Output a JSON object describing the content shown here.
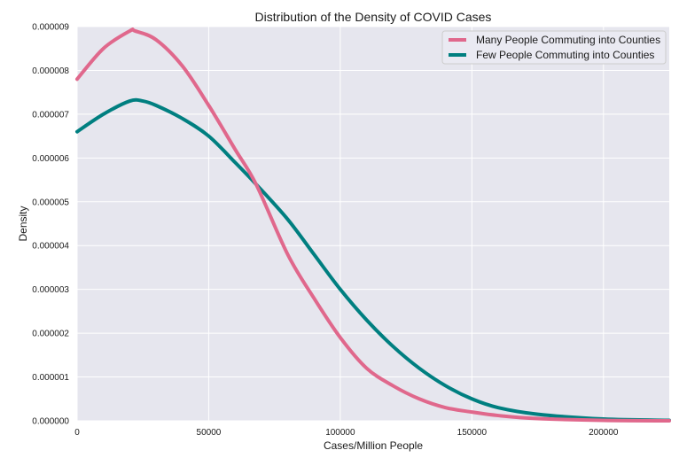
{
  "chart_data": {
    "type": "line",
    "title": "Distribution of the Density of COVID Cases",
    "xlabel": "Cases/Million People",
    "ylabel": "Density",
    "xlim": [
      0,
      225000
    ],
    "ylim": [
      0,
      9e-06
    ],
    "x_ticks": [
      0,
      50000,
      100000,
      150000,
      200000
    ],
    "x_tick_labels": [
      "0",
      "50000",
      "100000",
      "150000",
      "200000"
    ],
    "y_ticks": [
      0,
      1e-06,
      2e-06,
      3e-06,
      4e-06,
      5e-06,
      6e-06,
      7e-06,
      8e-06,
      9e-06
    ],
    "y_tick_labels": [
      "0.000000",
      "0.000001",
      "0.000002",
      "0.000003",
      "0.000004",
      "0.000005",
      "0.000006",
      "0.000007",
      "0.000008",
      "0.000009"
    ],
    "grid": true,
    "legend_position": "top-right",
    "background_color": "#e6e6ee",
    "series": [
      {
        "name": "Many People Commuting into Counties",
        "color": "#e0688c",
        "x": [
          0,
          10000,
          20000,
          22000,
          30000,
          40000,
          50000,
          60000,
          68000,
          80000,
          90000,
          100000,
          110000,
          120000,
          130000,
          140000,
          150000,
          160000,
          175000,
          200000,
          225000
        ],
        "y": [
          7.8e-06,
          8.5e-06,
          8.9e-06,
          8.9e-06,
          8.7e-06,
          8.1e-06,
          7.2e-06,
          6.2e-06,
          5.4e-06,
          3.8e-06,
          2.8e-06,
          1.9e-06,
          1.2e-06,
          8e-07,
          5e-07,
          3e-07,
          2e-07,
          1.2e-07,
          5e-08,
          1e-08,
          0.0
        ]
      },
      {
        "name": "Few People Commuting into Counties",
        "color": "#007f80",
        "x": [
          0,
          10000,
          20000,
          25000,
          30000,
          40000,
          50000,
          60000,
          68000,
          80000,
          90000,
          100000,
          110000,
          120000,
          130000,
          140000,
          150000,
          160000,
          175000,
          200000,
          225000
        ],
        "y": [
          6.6e-06,
          7e-06,
          7.3e-06,
          7.3e-06,
          7.2e-06,
          6.9e-06,
          6.5e-06,
          5.9e-06,
          5.4e-06,
          4.6e-06,
          3.8e-06,
          3e-06,
          2.3e-06,
          1.7e-06,
          1.2e-06,
          8e-07,
          5e-07,
          3e-07,
          1.5e-07,
          4e-08,
          1e-08
        ]
      }
    ]
  }
}
